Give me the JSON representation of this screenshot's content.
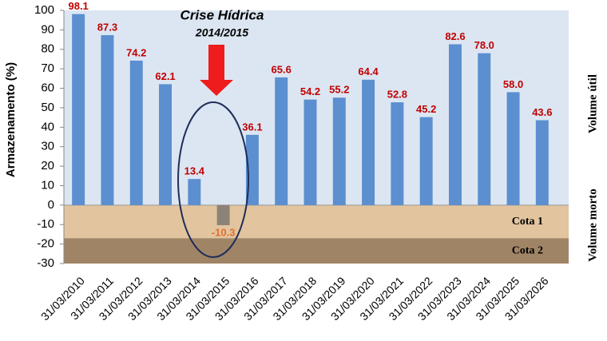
{
  "chart_data": {
    "type": "bar",
    "y_label": "Armazenamento (%)",
    "annotation_title": "Crise Hídrica",
    "annotation_subtitle": "2014/2015",
    "right_label_top": "Volume útil",
    "right_label_bottom": "Volume morto",
    "categories": [
      "31/03/2010",
      "31/03/2011",
      "31/03/2012",
      "31/03/2013",
      "31/03/2014",
      "31/03/2015",
      "31/03/2016",
      "31/03/2017",
      "31/03/2018",
      "31/03/2019",
      "31/03/2020",
      "31/03/2021",
      "31/03/2022",
      "31/03/2023",
      "31/03/2024",
      "31/03/2025",
      "31/03/2026"
    ],
    "values": [
      98.1,
      87.3,
      74.2,
      62.1,
      13.4,
      -10.3,
      36.1,
      65.6,
      54.2,
      55.2,
      64.4,
      52.8,
      45.2,
      82.6,
      78.0,
      58.0,
      43.6
    ],
    "value_labels": [
      "98.1",
      "87.3",
      "74.2",
      "62.1",
      "13.4",
      "-10.3",
      "36.1",
      "65.6",
      "54.2",
      "55.2",
      "64.4",
      "52.8",
      "45.2",
      "82.6",
      "78.0",
      "58.0",
      "43.6"
    ],
    "colors": [
      "#5b8fd0",
      "#5b8fd0",
      "#5b8fd0",
      "#5b8fd0",
      "#5b8fd0",
      "#8c8378",
      "#5b8fd0",
      "#5b8fd0",
      "#5b8fd0",
      "#5b8fd0",
      "#5b8fd0",
      "#5b8fd0",
      "#5b8fd0",
      "#5b8fd0",
      "#5b8fd0",
      "#5b8fd0",
      "#5b8fd0"
    ],
    "value_label_colors": [
      "#c00000",
      "#c00000",
      "#c00000",
      "#c00000",
      "#c00000",
      "#e07030",
      "#c00000",
      "#c00000",
      "#c00000",
      "#c00000",
      "#c00000",
      "#c00000",
      "#c00000",
      "#c00000",
      "#c00000",
      "#c00000",
      "#c00000"
    ],
    "bands": [
      {
        "label": "Cota 1",
        "from": 0,
        "to": -17,
        "color": "#e2c49e"
      },
      {
        "label": "Cota 2",
        "from": -17,
        "to": -30,
        "color": "#a08466"
      }
    ],
    "plot_background": "#dce6f2",
    "ylim": [
      -30,
      100
    ],
    "yticks": [
      100,
      90,
      80,
      70,
      60,
      50,
      40,
      30,
      20,
      10,
      0,
      -10,
      -20,
      -30
    ]
  }
}
